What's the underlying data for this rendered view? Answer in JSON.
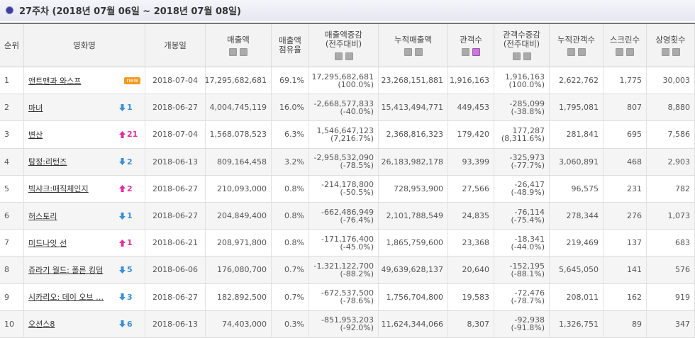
{
  "header": {
    "title": "27주차 (2018년 07월 06일 ~ 2018년 07월 08일)"
  },
  "table": {
    "headers": [
      [
        "순위"
      ],
      [
        "영화명"
      ],
      [
        "개봉일"
      ],
      [
        "매출액"
      ],
      [
        "매출액",
        "점유율"
      ],
      [
        "매출액증감",
        "(전주대비)"
      ],
      [
        "누적매출액"
      ],
      [
        "관객수"
      ],
      [
        "관객수증감",
        "(전주대비)"
      ],
      [
        "누적관객수"
      ],
      [
        "스크린수"
      ],
      [
        "상영횟수"
      ]
    ],
    "rows": [
      {
        "rank": "1",
        "title": "앤트맨과 와스프",
        "badge": "new",
        "open": "2018-07-04",
        "sales": "17,295,682,681",
        "share": "69.1%",
        "sales_change": [
          "17,295,682,681",
          "(100.0%)"
        ],
        "sales_acc": "23,268,151,881",
        "audi": "1,916,163",
        "audi_change": [
          "1,916,163",
          "(100.0%)"
        ],
        "audi_acc": "2,622,762",
        "screens": "1,775",
        "shows": "30,003"
      },
      {
        "rank": "2",
        "title": "마녀",
        "dir": "down",
        "change": "1",
        "open": "2018-06-27",
        "sales": "4,004,745,119",
        "share": "16.0%",
        "sales_change": [
          "-2,668,577,833",
          "(-40.0%)"
        ],
        "sales_acc": "15,413,494,771",
        "audi": "449,453",
        "audi_change": [
          "-285,099",
          "(-38.8%)"
        ],
        "audi_acc": "1,795,081",
        "screens": "807",
        "shows": "8,880"
      },
      {
        "rank": "3",
        "title": "변산",
        "dir": "up",
        "change": "21",
        "open": "2018-07-04",
        "sales": "1,568,078,523",
        "share": "6.3%",
        "sales_change": [
          "1,546,647,123",
          "(7,216.7%)"
        ],
        "sales_acc": "2,368,816,323",
        "audi": "179,420",
        "audi_change": [
          "177,287",
          "(8,311.6%)"
        ],
        "audi_acc": "281,841",
        "screens": "695",
        "shows": "7,586"
      },
      {
        "rank": "4",
        "title": "탐정:리턴즈",
        "dir": "down",
        "change": "2",
        "open": "2018-06-13",
        "sales": "809,164,458",
        "share": "3.2%",
        "sales_change": [
          "-2,958,532,090",
          "(-78.5%)"
        ],
        "sales_acc": "26,183,982,178",
        "audi": "93,399",
        "audi_change": [
          "-325,973",
          "(-77.7%)"
        ],
        "audi_acc": "3,060,891",
        "screens": "468",
        "shows": "2,903"
      },
      {
        "rank": "5",
        "title": "빅샤크:매직체인지",
        "dir": "up",
        "change": "2",
        "open": "2018-06-27",
        "sales": "210,093,000",
        "share": "0.8%",
        "sales_change": [
          "-214,178,800",
          "(-50.5%)"
        ],
        "sales_acc": "728,953,900",
        "audi": "27,566",
        "audi_change": [
          "-26,417",
          "(-48.9%)"
        ],
        "audi_acc": "96,575",
        "screens": "231",
        "shows": "782"
      },
      {
        "rank": "6",
        "title": "허스토리",
        "dir": "down",
        "change": "1",
        "open": "2018-06-27",
        "sales": "204,849,400",
        "share": "0.8%",
        "sales_change": [
          "-662,486,949",
          "(-76.4%)"
        ],
        "sales_acc": "2,101,788,549",
        "audi": "24,835",
        "audi_change": [
          "-76,114",
          "(-75.4%)"
        ],
        "audi_acc": "278,344",
        "screens": "276",
        "shows": "1,073"
      },
      {
        "rank": "7",
        "title": "미드나잇 선",
        "dir": "up",
        "change": "1",
        "open": "2018-06-21",
        "sales": "208,971,800",
        "share": "0.8%",
        "sales_change": [
          "-171,176,400",
          "(-45.0%)"
        ],
        "sales_acc": "1,865,759,600",
        "audi": "23,368",
        "audi_change": [
          "-18,341",
          "(-44.0%)"
        ],
        "audi_acc": "219,469",
        "screens": "137",
        "shows": "683"
      },
      {
        "rank": "8",
        "title": "쥬라기 월드: 폴른 킹덤",
        "dir": "down",
        "change": "5",
        "open": "2018-06-06",
        "sales": "176,080,700",
        "share": "0.7%",
        "sales_change": [
          "-1,321,122,700",
          "(-88.2%)"
        ],
        "sales_acc": "49,639,628,137",
        "audi": "20,640",
        "audi_change": [
          "-152,195",
          "(-88.1%)"
        ],
        "audi_acc": "5,645,050",
        "screens": "141",
        "shows": "576"
      },
      {
        "rank": "9",
        "title": "시카리오: 데이 오브 …",
        "dir": "down",
        "change": "3",
        "open": "2018-06-27",
        "sales": "182,892,500",
        "share": "0.7%",
        "sales_change": [
          "-672,537,500",
          "(-78.6%)"
        ],
        "sales_acc": "1,756,704,800",
        "audi": "19,583",
        "audi_change": [
          "-72,476",
          "(-78.7%)"
        ],
        "audi_acc": "208,011",
        "screens": "162",
        "shows": "919"
      },
      {
        "rank": "10",
        "title": "오션스8",
        "dir": "down",
        "change": "6",
        "open": "2018-06-13",
        "sales": "74,403,000",
        "share": "0.3%",
        "sales_change": [
          "-851,953,203",
          "(-92.0%)"
        ],
        "sales_acc": "11,624,344,066",
        "audi": "8,307",
        "audi_change": [
          "-92,938",
          "(-91.8%)"
        ],
        "audi_acc": "1,326,751",
        "screens": "89",
        "shows": "347"
      }
    ]
  }
}
